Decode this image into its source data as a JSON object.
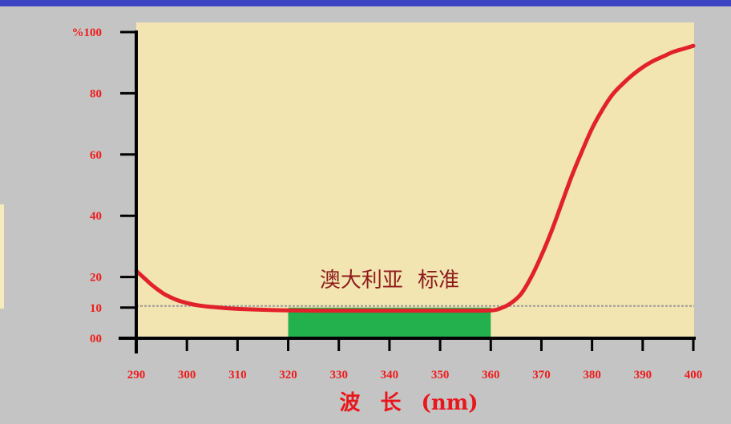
{
  "chart_data": {
    "type": "line",
    "xlabel": "波 长 (nm)",
    "xlim": [
      290,
      400
    ],
    "ylim": [
      0,
      100
    ],
    "grid": false,
    "x_ticks": [
      290,
      300,
      310,
      320,
      330,
      340,
      350,
      360,
      370,
      380,
      390,
      400
    ],
    "y_ticks": [
      {
        "value": 100,
        "label": "%100"
      },
      {
        "value": 80,
        "label": "80"
      },
      {
        "value": 60,
        "label": "60"
      },
      {
        "value": 40,
        "label": "40"
      },
      {
        "value": 20,
        "label": "20"
      },
      {
        "value": 10,
        "label": "10"
      },
      {
        "value": 0,
        "label": "00"
      }
    ],
    "series": [
      {
        "x": [
          290,
          291,
          292,
          293,
          294,
          295,
          296,
          298,
          300,
          302,
          305,
          308,
          310,
          315,
          320,
          325,
          330,
          335,
          340,
          345,
          350,
          355,
          360,
          362,
          364,
          366,
          368,
          370,
          372,
          374,
          376,
          378,
          380,
          382,
          384,
          386,
          388,
          390,
          392,
          394,
          396,
          398,
          400
        ],
        "y": [
          22,
          20.5,
          19,
          17.5,
          16.2,
          15,
          14,
          12.5,
          11.5,
          10.8,
          10.2,
          9.8,
          9.6,
          9.3,
          9.1,
          9,
          9,
          9,
          9,
          9,
          9,
          9,
          9.1,
          9.8,
          11.5,
          14.5,
          20,
          27,
          35,
          44,
          53,
          61,
          68.5,
          74.5,
          79.5,
          83,
          86,
          88.5,
          90.5,
          92,
          93.5,
          94.5,
          95.5
        ]
      }
    ],
    "reference_lines": [
      {
        "y": 10
      }
    ],
    "highlight_band": {
      "x": [
        320,
        360
      ],
      "y": [
        0,
        10
      ],
      "label": "澳大利亚 标准"
    }
  },
  "colors": {
    "page_bg": "#c4c4c4",
    "header_bar": "#3c44c4",
    "plot_bg": "#f2e5b1",
    "axis": "#000000",
    "tick_label": "#ee1c1c",
    "curve": "#e2222a",
    "band": "#22b14c",
    "reference_line": "#9a9a9a",
    "annotation": "#8e1b1b",
    "axis_label": "#e8161d"
  }
}
